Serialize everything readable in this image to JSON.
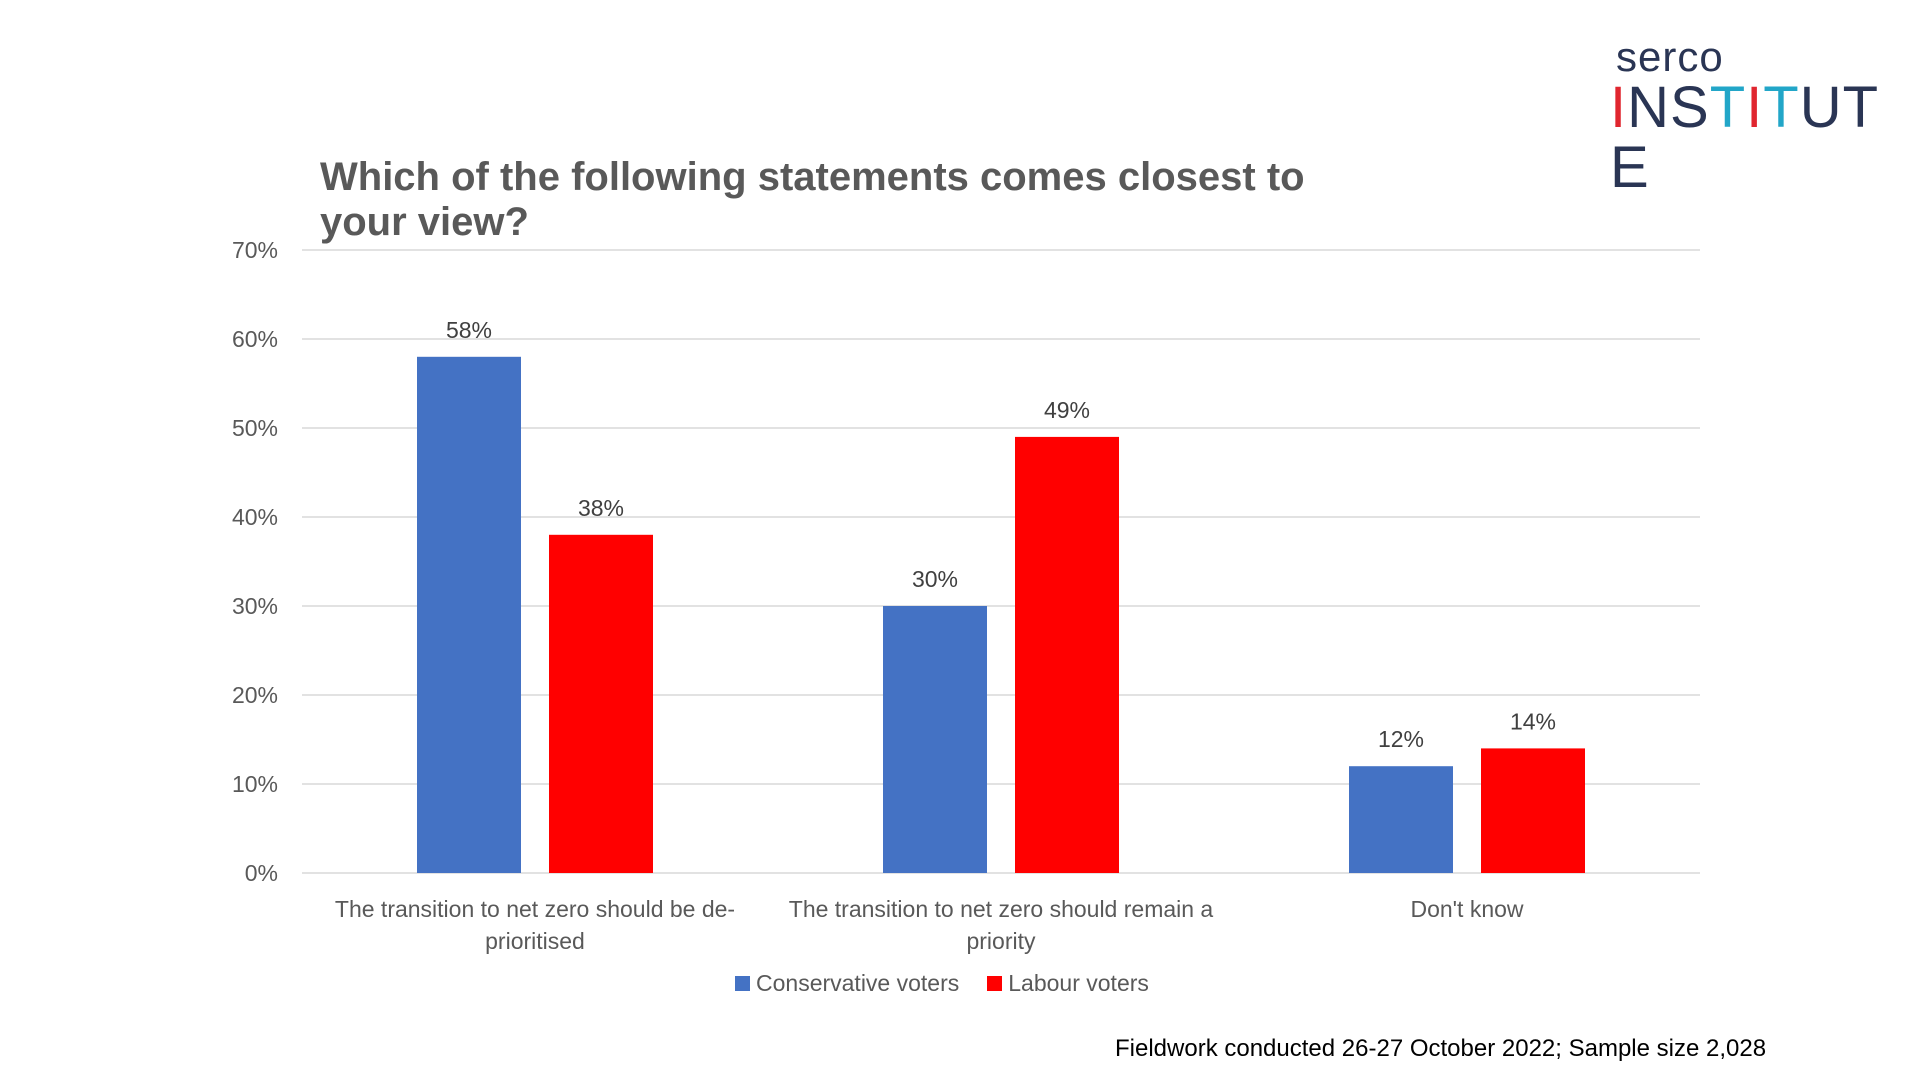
{
  "logo": {
    "line1": "serco",
    "line2_letters": [
      "I",
      "N",
      "S",
      "T",
      "I",
      "T",
      "U",
      "T",
      "E"
    ],
    "letter_colors": [
      "#e0262f",
      "#2a3554",
      "#2a3554",
      "#22a6c8",
      "#e0262f",
      "#22a6c8",
      "#2a3554",
      "#2a3554",
      "#2a3554"
    ]
  },
  "footnote": "Fieldwork conducted 26-27 October 2022; Sample size 2,028",
  "chart_data": {
    "type": "bar",
    "title": "Which of the following statements comes closest to your view?",
    "categories": [
      "The transition to net zero should be de-prioritised",
      "The transition to net zero should remain a priority",
      "Don't know"
    ],
    "category_lines": [
      [
        "The transition to net zero should be de-",
        "prioritised"
      ],
      [
        "The transition to net zero should remain a",
        "priority"
      ],
      [
        "Don't know"
      ]
    ],
    "series": [
      {
        "name": "Conservative voters",
        "color": "#4472c4",
        "values": [
          58,
          30,
          12
        ]
      },
      {
        "name": "Labour voters",
        "color": "#ff0000",
        "values": [
          38,
          49,
          14
        ]
      }
    ],
    "value_suffix": "%",
    "ylim": [
      0,
      70
    ],
    "yticks": [
      "0%",
      "10%",
      "20%",
      "30%",
      "40%",
      "50%",
      "60%",
      "70%"
    ],
    "grid": true,
    "legend_position": "bottom"
  }
}
